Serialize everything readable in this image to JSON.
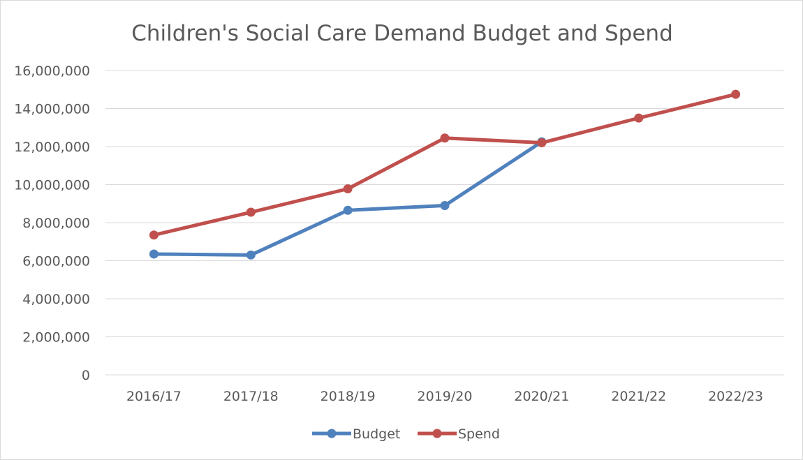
{
  "chart_data": {
    "type": "line",
    "title": "Children's Social Care Demand Budget and Spend",
    "xlabel": "",
    "ylabel": "",
    "categories": [
      "2016/17",
      "2017/18",
      "2018/19",
      "2019/20",
      "2020/21",
      "2021/22",
      "2022/23"
    ],
    "ylim": [
      0,
      16000000
    ],
    "yticks": [
      0,
      2000000,
      4000000,
      6000000,
      8000000,
      10000000,
      12000000,
      14000000,
      16000000
    ],
    "ytick_labels": [
      "0",
      "2,000,000",
      "4,000,000",
      "6,000,000",
      "8,000,000",
      "10,000,000",
      "12,000,000",
      "14,000,000",
      "16,000,000"
    ],
    "grid": true,
    "legend_position": "bottom",
    "series": [
      {
        "name": "Budget",
        "color": "#4f81bd",
        "values": [
          6350000,
          6300000,
          8650000,
          8900000,
          12250000,
          null,
          null
        ]
      },
      {
        "name": "Spend",
        "color": "#c0504d",
        "values": [
          7350000,
          8550000,
          9780000,
          12450000,
          12200000,
          13500000,
          14750000
        ]
      }
    ]
  }
}
